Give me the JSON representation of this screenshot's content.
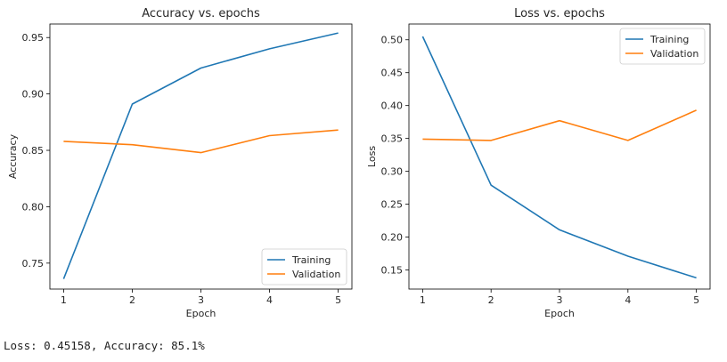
{
  "output": {
    "text": "Loss: 0.45158, Accuracy: 85.1%"
  },
  "colors": {
    "training": "#1f77b4",
    "validation": "#ff7f0e"
  },
  "chart_data": [
    {
      "type": "line",
      "title": "Accuracy vs. epochs",
      "xlabel": "Epoch",
      "ylabel": "Accuracy",
      "x": [
        1,
        2,
        3,
        4,
        5
      ],
      "xlim": [
        0.8,
        5.2
      ],
      "ylim": [
        0.727,
        0.962
      ],
      "xticks": [
        1,
        2,
        3,
        4,
        5
      ],
      "yticks": [
        0.75,
        0.8,
        0.85,
        0.9,
        0.95
      ],
      "ytick_labels": [
        "0.75",
        "0.80",
        "0.85",
        "0.90",
        "0.95"
      ],
      "legend_position": "bottom-right",
      "grid": false,
      "series": [
        {
          "name": "Training",
          "values": [
            0.736,
            0.891,
            0.923,
            0.94,
            0.954
          ]
        },
        {
          "name": "Validation",
          "values": [
            0.858,
            0.855,
            0.848,
            0.863,
            0.868
          ]
        }
      ]
    },
    {
      "type": "line",
      "title": "Loss vs. epochs",
      "xlabel": "Epoch",
      "ylabel": "Loss",
      "x": [
        1,
        2,
        3,
        4,
        5
      ],
      "xlim": [
        0.8,
        5.2
      ],
      "ylim": [
        0.121,
        0.524
      ],
      "xticks": [
        1,
        2,
        3,
        4,
        5
      ],
      "yticks": [
        0.15,
        0.2,
        0.25,
        0.3,
        0.35,
        0.4,
        0.45,
        0.5
      ],
      "ytick_labels": [
        "0.15",
        "0.20",
        "0.25",
        "0.30",
        "0.35",
        "0.40",
        "0.45",
        "0.50"
      ],
      "legend_position": "top-right",
      "grid": false,
      "series": [
        {
          "name": "Training",
          "values": [
            0.505,
            0.279,
            0.211,
            0.171,
            0.138
          ]
        },
        {
          "name": "Validation",
          "values": [
            0.349,
            0.347,
            0.377,
            0.347,
            0.393
          ]
        }
      ]
    }
  ]
}
